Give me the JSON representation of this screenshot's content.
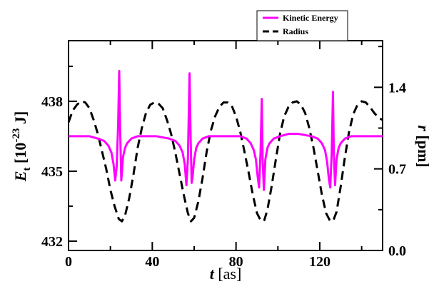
{
  "chart_data": {
    "type": "line",
    "x_label": {
      "symbol": "t",
      "unit": "[as]"
    },
    "y_label_left": {
      "symbol": "E",
      "subscript": "t",
      "unit_pre": "[10",
      "unit_exp": "-23",
      "unit_post": " J]"
    },
    "y_label_right": {
      "symbol": "r",
      "unit": "[pm]"
    },
    "xlim": [
      0,
      150
    ],
    "ylim_left": [
      431.6,
      440.6
    ],
    "ylim_right": [
      0.0,
      1.8
    ],
    "x_ticks": [
      "0",
      "40",
      "80",
      "120"
    ],
    "y_ticks_left": [
      "432",
      "435",
      "438"
    ],
    "y_ticks_right": [
      "0.0",
      "0.7",
      "1.4"
    ],
    "legend": {
      "position": "top-right",
      "entries": [
        "Kinetic Energy",
        "Radius"
      ]
    },
    "grid": false,
    "series": [
      {
        "name": "Kinetic Energy",
        "axis": "left",
        "color": "#ff00ff",
        "style": "solid",
        "x": [
          0,
          5,
          10,
          14,
          17,
          19,
          20.5,
          21.5,
          22.3,
          23,
          23.7,
          24.2,
          24.6,
          25.2,
          26,
          27,
          28,
          30,
          33,
          37,
          42,
          48,
          51,
          53,
          54.5,
          55.5,
          56.3,
          57,
          57.8,
          58.3,
          58.8,
          59.3,
          60,
          61,
          62,
          64,
          67,
          71,
          76,
          82,
          85,
          87,
          88.5,
          89.5,
          90.3,
          91,
          91.7,
          92.3,
          92.7,
          93.3,
          94,
          95,
          96,
          98,
          101,
          105,
          110,
          116,
          119,
          121,
          122.5,
          123.5,
          124.3,
          125,
          125.7,
          126.3,
          126.7,
          127.3,
          128,
          129,
          130,
          132,
          135,
          140,
          145,
          150
        ],
        "y": [
          436.5,
          436.5,
          436.5,
          436.4,
          436.3,
          436.1,
          435.8,
          435.3,
          434.6,
          435.2,
          437.0,
          439.3,
          437.0,
          434.6,
          435.6,
          436.0,
          436.2,
          436.4,
          436.5,
          436.5,
          436.5,
          436.4,
          436.3,
          436.1,
          435.8,
          435.3,
          434.4,
          435.5,
          439.2,
          436.5,
          434.5,
          434.8,
          435.5,
          436.0,
          436.2,
          436.4,
          436.5,
          436.5,
          436.5,
          436.5,
          436.4,
          436.2,
          435.9,
          435.5,
          434.8,
          434.3,
          435.8,
          438.1,
          435.5,
          434.2,
          435.5,
          436.0,
          436.2,
          436.4,
          436.5,
          436.6,
          436.6,
          436.5,
          436.4,
          436.2,
          435.9,
          435.4,
          434.7,
          434.3,
          435.8,
          438.4,
          435.8,
          434.4,
          435.5,
          436.0,
          436.2,
          436.4,
          436.5,
          436.5,
          436.5,
          436.5
        ]
      },
      {
        "name": "Radius",
        "axis": "right",
        "color": "#000000",
        "style": "dashed",
        "x": [
          0,
          2,
          4,
          6,
          8,
          10,
          12,
          14,
          16,
          18,
          20,
          22,
          24,
          25.5,
          27,
          29,
          31,
          33,
          35,
          37,
          39,
          41,
          43,
          45,
          47,
          49,
          51,
          53,
          55,
          57,
          58.5,
          60,
          62,
          64,
          66,
          68,
          70,
          72,
          74,
          76,
          78,
          80,
          82,
          84,
          86,
          88,
          90,
          92,
          93.5,
          95,
          97,
          99,
          101,
          103,
          105,
          107,
          109,
          111,
          113,
          115,
          117,
          119,
          121,
          123,
          125,
          126.5,
          128,
          130,
          132,
          134,
          136,
          138,
          140,
          142,
          144,
          146,
          148,
          150
        ],
        "y": [
          1.1,
          1.2,
          1.25,
          1.28,
          1.27,
          1.22,
          1.12,
          1.0,
          0.85,
          0.7,
          0.52,
          0.38,
          0.27,
          0.25,
          0.3,
          0.45,
          0.65,
          0.88,
          1.05,
          1.18,
          1.25,
          1.27,
          1.26,
          1.22,
          1.12,
          1.0,
          0.84,
          0.66,
          0.48,
          0.32,
          0.25,
          0.28,
          0.42,
          0.62,
          0.85,
          1.03,
          1.15,
          1.23,
          1.27,
          1.27,
          1.24,
          1.15,
          1.02,
          0.85,
          0.67,
          0.48,
          0.32,
          0.25,
          0.26,
          0.35,
          0.55,
          0.78,
          1.0,
          1.15,
          1.23,
          1.27,
          1.28,
          1.25,
          1.18,
          1.05,
          0.88,
          0.68,
          0.48,
          0.32,
          0.25,
          0.26,
          0.33,
          0.55,
          0.8,
          1.02,
          1.17,
          1.25,
          1.28,
          1.27,
          1.23,
          1.18,
          1.14,
          1.12
        ]
      }
    ]
  }
}
